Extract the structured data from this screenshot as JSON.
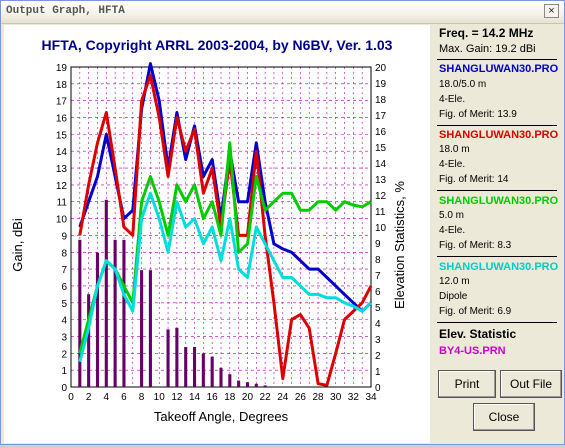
{
  "window": {
    "title": "Output Graph, HFTA",
    "close_label": "×"
  },
  "plot": {
    "title": "HFTA, Copyright ARRL 2003-2004, by N6BV, Ver. 1.03",
    "y_left_label": "Gain, dBi",
    "y_right_label": "Elevation Statistics, %",
    "x_label": "Takeoff Angle, Degrees"
  },
  "side": {
    "freq": "Freq. = 14.2 MHz",
    "max_gain": "Max. Gain: 19.2 dBi",
    "antennas": [
      {
        "name": "SHANGLUWAN30.PRO",
        "color": "#0000cc",
        "line1": "18.0/5.0 m",
        "line2": "4-Ele.",
        "fom": "Fig. of Merit: 13.9"
      },
      {
        "name": "SHANGLUWAN30.PRO",
        "color": "#dd0000",
        "line1": "18.0 m",
        "line2": "4-Ele.",
        "fom": "Fig. of Merit: 14"
      },
      {
        "name": "SHANGLUWAN30.PRO",
        "color": "#00cc00",
        "line1": "5.0 m",
        "line2": "4-Ele.",
        "fom": "Fig. of Merit: 8.3"
      },
      {
        "name": "SHANGLUWAN30.PRO",
        "color": "#00cccc",
        "line1": "12.0 m",
        "line2": "Dipole",
        "fom": "Fig. of Merit: 6.9"
      }
    ],
    "elev_title": "Elev. Statistic",
    "elev_file": "BY4-US.PRN"
  },
  "buttons": {
    "print": "Print",
    "out_file": "Out File",
    "close": "Close"
  },
  "chart_data": {
    "type": "line",
    "x_ticks": [
      0,
      2,
      4,
      6,
      8,
      10,
      12,
      14,
      16,
      18,
      20,
      22,
      24,
      26,
      28,
      30,
      32,
      34
    ],
    "y_left_ticks": [
      0,
      1,
      2,
      3,
      4,
      5,
      6,
      7,
      8,
      9,
      10,
      11,
      12,
      13,
      14,
      15,
      16,
      17,
      18,
      19
    ],
    "y_right_ticks": [
      0,
      1,
      2,
      3,
      4,
      5,
      6,
      7,
      8,
      9,
      10,
      11,
      12,
      13,
      14,
      15,
      16,
      17,
      18,
      19,
      20
    ],
    "xlim": [
      0,
      34
    ],
    "ylim_left": [
      0,
      19
    ],
    "ylim_right": [
      0,
      20
    ],
    "grid": true,
    "series": [
      {
        "name": "SHANGLUWAN30.PRO",
        "color": "#0000cc",
        "x": [
          1,
          2,
          3,
          4,
          5,
          6,
          7,
          8,
          9,
          10,
          11,
          12,
          13,
          14,
          15,
          16,
          17,
          18,
          19,
          20,
          21,
          22,
          23,
          24,
          25,
          26,
          27,
          28,
          29,
          30,
          31,
          32,
          33,
          34
        ],
        "y": [
          9.5,
          11,
          12.5,
          15,
          12.5,
          10,
          10.5,
          16.5,
          19.2,
          17,
          13,
          16.3,
          13.5,
          15.5,
          12.5,
          13.5,
          10,
          14,
          11,
          11,
          14.5,
          11,
          8.5,
          8.2,
          8,
          7.5,
          7,
          7,
          6.5,
          6,
          5.5,
          5,
          4.5,
          5
        ]
      },
      {
        "name": "SHANGLUWAN30.PRO",
        "color": "#dd0000",
        "x": [
          1,
          2,
          3,
          4,
          5,
          6,
          7,
          8,
          9,
          10,
          11,
          12,
          13,
          14,
          15,
          16,
          17,
          18,
          19,
          20,
          21,
          22,
          23,
          24,
          25,
          26,
          27,
          28,
          29,
          30,
          31,
          32,
          33,
          34
        ],
        "y": [
          9,
          12,
          14.5,
          16.3,
          13,
          9.5,
          9,
          17,
          18.5,
          16,
          12.5,
          16,
          14,
          15.3,
          11.5,
          13,
          9.5,
          13.5,
          9,
          9,
          14,
          9,
          5,
          0.5,
          4,
          4.3,
          3.5,
          0.2,
          0.1,
          2,
          4,
          4.5,
          5,
          6
        ]
      },
      {
        "name": "SHANGLUWAN30.PRO",
        "color": "#00cc00",
        "x": [
          1,
          2,
          3,
          4,
          5,
          6,
          7,
          8,
          9,
          10,
          11,
          12,
          13,
          14,
          15,
          16,
          17,
          18,
          19,
          20,
          21,
          22,
          23,
          24,
          25,
          26,
          27,
          28,
          29,
          30,
          31,
          32,
          33,
          34
        ],
        "y": [
          2,
          4,
          6,
          7.5,
          7,
          6,
          5,
          11,
          12.5,
          11,
          9,
          12,
          11,
          12,
          10,
          11,
          9,
          14.5,
          8,
          8.5,
          12.5,
          10.5,
          11,
          11.5,
          11.5,
          10.5,
          10.5,
          11,
          11,
          10.5,
          11,
          10.8,
          10.7,
          11
        ]
      },
      {
        "name": "SHANGLUWAN30.PRO",
        "color": "#00dddd",
        "x": [
          1,
          2,
          3,
          4,
          5,
          6,
          7,
          8,
          9,
          10,
          11,
          12,
          13,
          14,
          15,
          16,
          17,
          18,
          19,
          20,
          21,
          22,
          23,
          24,
          25,
          26,
          27,
          28,
          29,
          30,
          31,
          32,
          33,
          34
        ],
        "y": [
          1.5,
          3.5,
          6,
          7.5,
          7,
          5.5,
          4.5,
          10,
          11.5,
          10,
          8,
          11,
          9.5,
          10,
          8.5,
          9.5,
          7.5,
          10,
          7,
          6.5,
          9.5,
          8.5,
          7.5,
          6.5,
          6.5,
          6,
          5.5,
          5.5,
          5.3,
          5.3,
          5,
          4.8,
          4.5,
          5
        ]
      }
    ],
    "bars": {
      "name": "Elevation Statistics",
      "color": "#660066",
      "axis": "right",
      "x": [
        1,
        2,
        3,
        4,
        5,
        6,
        7,
        8,
        9,
        10,
        11,
        12,
        13,
        14,
        15,
        16,
        17,
        18,
        19,
        20,
        21,
        22
      ],
      "y": [
        9.2,
        5.8,
        8.4,
        11.7,
        9.2,
        9.2,
        0,
        7.3,
        7.3,
        0,
        3.6,
        3.7,
        2.5,
        2.5,
        2.1,
        1.9,
        1.2,
        0.8,
        0.4,
        0.3,
        0.2,
        0.1
      ]
    }
  }
}
